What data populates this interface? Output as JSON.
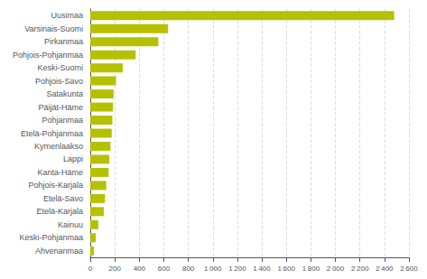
{
  "chart_data": {
    "type": "bar",
    "orientation": "horizontal",
    "categories": [
      "Ahvenanmaa",
      "Keski-Pohjanmaa",
      "Kainuu",
      "Etelä-Karjala",
      "Etelä-Savo",
      "Pohjois-Karjala",
      "Kanta-Häme",
      "Lappi",
      "Kymenlaakso",
      "Etelä-Pohjanmaa",
      "Pohjanmaa",
      "Päijät-Häme",
      "Satakunta",
      "Pohjois-Savo",
      "Keski-Suomi",
      "Pohjois-Pohjanmaa",
      "Pirkanmaa",
      "Varsinais-Suomi",
      "Uusimaa"
    ],
    "values": [
      30,
      45,
      65,
      110,
      120,
      130,
      150,
      155,
      165,
      175,
      180,
      185,
      190,
      210,
      265,
      370,
      555,
      635,
      2480
    ],
    "color": "#b5c100",
    "xlim": [
      0,
      2600
    ],
    "xticks": [
      0,
      200,
      400,
      600,
      800,
      {
        "value": 1000,
        "label": "1 000"
      },
      {
        "value": 1200,
        "label": "1 200"
      },
      {
        "value": 1400,
        "label": "1 400"
      },
      {
        "value": 1600,
        "label": "1 600"
      },
      {
        "value": 1800,
        "label": "1 800"
      },
      {
        "value": 2000,
        "label": "2 000"
      },
      {
        "value": 2200,
        "label": "2 200"
      },
      {
        "value": 2400,
        "label": "2 400"
      },
      {
        "value": 2600,
        "label": "2 600"
      }
    ],
    "grid": true
  }
}
